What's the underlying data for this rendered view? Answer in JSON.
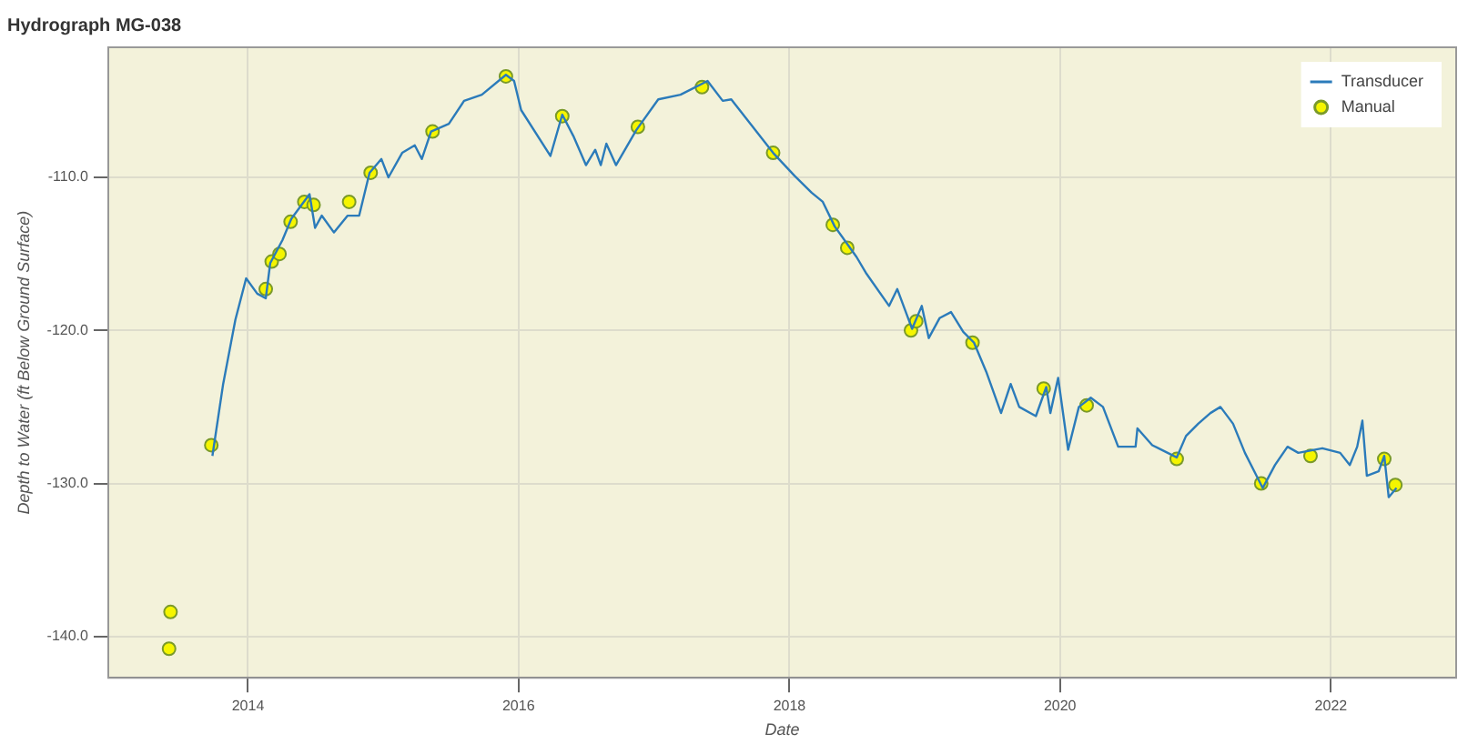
{
  "chart_data": {
    "type": "line",
    "title": "Hydrograph MG-038",
    "xlabel": "Date",
    "ylabel": "Depth to Water (ft Below Ground Surface)",
    "xlim": [
      "2012-12-20",
      "2022-12-05"
    ],
    "xticks": [
      "2014",
      "2016",
      "2018",
      "2020",
      "2022"
    ],
    "ylim": [
      -142.7,
      -101.5
    ],
    "yticks": [
      {
        "value": -110,
        "label": "-110.0"
      },
      {
        "value": -120,
        "label": "-120.0"
      },
      {
        "value": -130,
        "label": "-130.0"
      },
      {
        "value": -140,
        "label": "-140.0"
      }
    ],
    "grid": true,
    "legend": "top right",
    "series": [
      {
        "name": "Transducer",
        "type": "line",
        "marker": "none",
        "color": "#2b7bba",
        "x": [
          "2013-09-27",
          "2013-10-26",
          "2013-11-28",
          "2013-12-27",
          "2014-01-26",
          "2014-02-18",
          "2014-03-02",
          "2014-04-04",
          "2014-04-28",
          "2014-06-16",
          "2014-07-01",
          "2014-07-19",
          "2014-08-21",
          "2014-09-27",
          "2014-10-28",
          "2014-11-25",
          "2014-12-27",
          "2015-01-15",
          "2015-02-21",
          "2015-03-27",
          "2015-04-15",
          "2015-05-10",
          "2015-06-27",
          "2015-08-07",
          "2015-09-24",
          "2015-11-28",
          "2015-12-20",
          "2016-01-08",
          "2016-03-27",
          "2016-04-28",
          "2016-05-28",
          "2016-07-01",
          "2016-07-26",
          "2016-08-10",
          "2016-08-25",
          "2016-09-20",
          "2016-11-14",
          "2017-01-12",
          "2017-03-13",
          "2017-05-25",
          "2017-07-05",
          "2017-07-28",
          "2017-11-18",
          "2018-01-15",
          "2018-03-02",
          "2018-04-01",
          "2018-05-03",
          "2018-07-01",
          "2018-07-28",
          "2018-09-27",
          "2018-10-19",
          "2018-11-28",
          "2018-12-24",
          "2019-01-12",
          "2019-02-10",
          "2019-03-13",
          "2019-04-15",
          "2019-05-14",
          "2019-06-16",
          "2019-07-26",
          "2019-08-21",
          "2019-09-13",
          "2019-10-28",
          "2019-11-25",
          "2019-12-06",
          "2019-12-27",
          "2020-01-23",
          "2020-02-21",
          "2020-03-24",
          "2020-04-26",
          "2020-06-06",
          "2020-07-23",
          "2020-07-28",
          "2020-09-06",
          "2020-11-11",
          "2020-12-06",
          "2021-01-08",
          "2021-02-10",
          "2021-03-09",
          "2021-04-12",
          "2021-05-14",
          "2021-07-01",
          "2021-08-03",
          "2021-09-06",
          "2021-10-05",
          "2021-12-09",
          "2022-01-26",
          "2022-02-21",
          "2022-03-13",
          "2022-03-27",
          "2022-04-08",
          "2022-05-10",
          "2022-05-25",
          "2022-06-06",
          "2022-06-27"
        ],
        "values": [
          -128.2,
          -123.5,
          -119.3,
          -116.6,
          -117.6,
          -117.9,
          -115.6,
          -114.1,
          -112.7,
          -111.1,
          -113.3,
          -112.5,
          -113.6,
          -112.5,
          -112.5,
          -109.7,
          -108.8,
          -110.0,
          -108.4,
          -107.9,
          -108.8,
          -107.0,
          -106.5,
          -105.0,
          -104.6,
          -103.3,
          -103.7,
          -105.6,
          -108.6,
          -105.9,
          -107.3,
          -109.2,
          -108.2,
          -109.2,
          -107.8,
          -109.2,
          -106.9,
          -104.9,
          -104.6,
          -103.7,
          -105.0,
          -104.9,
          -108.4,
          -109.9,
          -111.0,
          -111.6,
          -113.2,
          -115.2,
          -116.3,
          -118.4,
          -117.3,
          -119.9,
          -118.4,
          -120.5,
          -119.2,
          -118.8,
          -120.1,
          -120.8,
          -122.7,
          -125.4,
          -123.5,
          -125.0,
          -125.6,
          -123.7,
          -125.4,
          -123.1,
          -127.8,
          -125.0,
          -124.4,
          -125.0,
          -127.6,
          -127.6,
          -126.4,
          -127.5,
          -128.3,
          -126.9,
          -126.1,
          -125.4,
          -125.0,
          -126.1,
          -128.0,
          -130.3,
          -128.8,
          -127.6,
          -128.0,
          -127.7,
          -128.0,
          -128.8,
          -127.6,
          -125.9,
          -129.5,
          -129.2,
          -128.2,
          -130.9,
          -130.3
        ]
      },
      {
        "name": "Manual",
        "type": "scatter",
        "marker": "circle",
        "color": "#f5f500",
        "x": [
          "2013-06-06",
          "2013-06-02",
          "2013-09-24",
          "2014-02-18",
          "2014-03-06",
          "2014-03-27",
          "2014-04-26",
          "2014-06-02",
          "2014-06-27",
          "2014-10-01",
          "2014-11-28",
          "2015-05-14",
          "2015-11-28",
          "2016-04-28",
          "2016-11-18",
          "2017-05-10",
          "2017-11-18",
          "2018-04-28",
          "2018-06-06",
          "2018-11-25",
          "2018-12-09",
          "2019-05-10",
          "2019-11-18",
          "2020-03-13",
          "2020-11-11",
          "2021-06-27",
          "2021-11-07",
          "2022-05-25",
          "2022-06-24"
        ],
        "values": [
          -138.4,
          -140.8,
          -127.5,
          -117.3,
          -115.5,
          -115.0,
          -112.9,
          -111.6,
          -111.8,
          -111.6,
          -109.7,
          -107.0,
          -103.4,
          -106.0,
          -106.7,
          -104.1,
          -108.4,
          -113.1,
          -114.6,
          -120.0,
          -119.4,
          -120.8,
          -123.8,
          -124.9,
          -128.4,
          -130.0,
          -128.2,
          -128.4,
          -130.1
        ]
      }
    ]
  }
}
